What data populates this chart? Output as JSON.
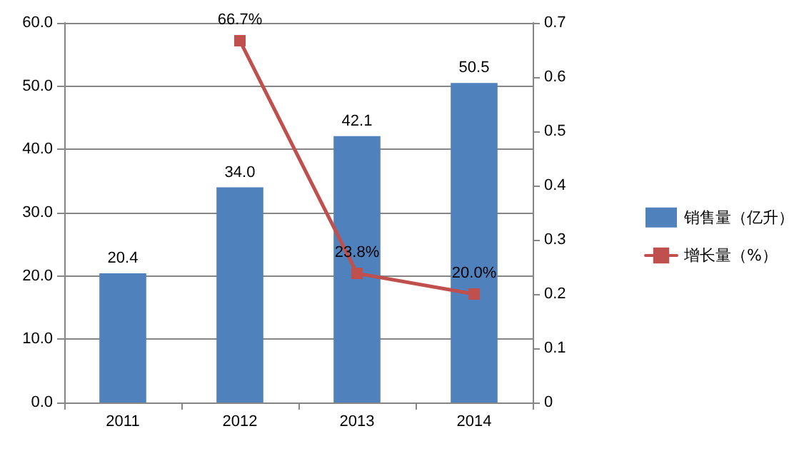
{
  "chart_data": {
    "type": "bar",
    "categories": [
      "2011",
      "2012",
      "2013",
      "2014"
    ],
    "series": [
      {
        "name": "销售量（亿升）",
        "color": "#4f81bd",
        "values": [
          20.4,
          34.0,
          42.1,
          50.5
        ],
        "value_labels": [
          "20.4",
          "34.0",
          "42.1",
          "50.5"
        ]
      },
      {
        "name": "增长量（%）",
        "type": "line",
        "axis": "y2",
        "color": "#c0504d",
        "values": [
          null,
          0.667,
          0.238,
          0.2
        ],
        "value_labels": [
          null,
          "66.7%",
          "23.8%",
          "20.0%"
        ]
      }
    ],
    "ylim": [
      0,
      60
    ],
    "yticks": [
      {
        "value": 0,
        "label": "0.0"
      },
      {
        "value": 10,
        "label": "10.0"
      },
      {
        "value": 20,
        "label": "20.0"
      },
      {
        "value": 30,
        "label": "30.0"
      },
      {
        "value": 40,
        "label": "40.0"
      },
      {
        "value": 50,
        "label": "50.0"
      },
      {
        "value": 60,
        "label": "60.0"
      }
    ],
    "y2lim": [
      0,
      0.7
    ],
    "y2ticks": [
      0,
      0.1,
      0.2,
      0.3,
      0.4,
      0.5,
      0.6,
      0.7
    ],
    "grid": "y",
    "legend": "right",
    "marker": "square",
    "line_style": "solid"
  }
}
